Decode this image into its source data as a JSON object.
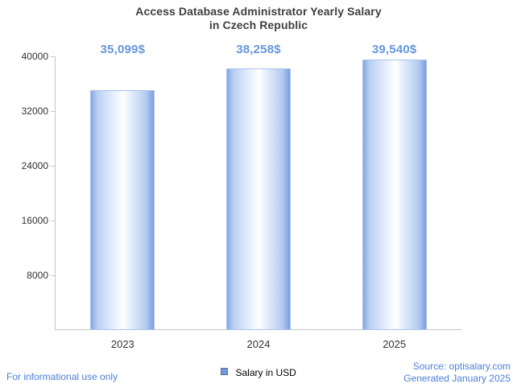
{
  "chart_data": {
    "type": "bar",
    "title": "Access Database Administrator Yearly Salary in Czech Republic",
    "title_lines": [
      "Access Database Administrator Yearly Salary",
      "in Czech Republic"
    ],
    "categories": [
      "2023",
      "2024",
      "2025"
    ],
    "values": [
      35099,
      38258,
      39540
    ],
    "value_labels": [
      "35,099$",
      "38,258$",
      "39,540$"
    ],
    "ylim": [
      0,
      40000
    ],
    "yticks": [
      8000,
      16000,
      24000,
      32000,
      40000
    ],
    "grid": false,
    "legend": [
      "Salary in USD"
    ],
    "legend_position": "bottom",
    "xlabel": "",
    "ylabel": "",
    "colors": {
      "bar_fill_edge": "#84a7e3",
      "bar_fill_center": "#ffffff",
      "bar_border": "#a9c2ec",
      "value_label": "#6496dc",
      "axis": "#c6c6c6",
      "title": "#3f3f3f",
      "tick_text": "#333333",
      "legend_swatch": "#7598d8"
    }
  },
  "footer": {
    "disclaimer": "For informational use only",
    "source": "Source: optisalary.com",
    "generated": "Generated January 2025"
  }
}
